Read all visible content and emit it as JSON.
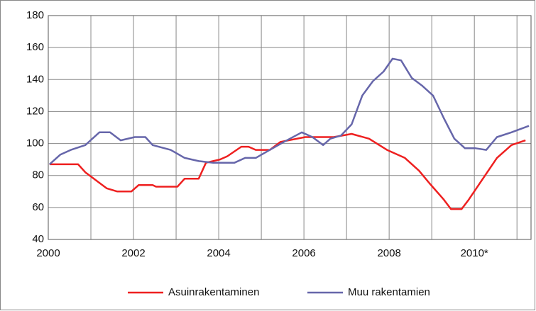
{
  "chart_data": {
    "type": "line",
    "xlim": [
      2000,
      2011.33
    ],
    "xticks": [
      2000,
      {
        "value": 2001,
        "label": null
      },
      2002,
      {
        "value": 2003,
        "label": null
      },
      2004,
      {
        "value": 2005,
        "label": null
      },
      2006,
      {
        "value": 2007,
        "label": null
      },
      2008,
      {
        "value": 2009,
        "label": null
      },
      {
        "value": 2010,
        "label": "2010*"
      },
      {
        "value": 2011,
        "label": null
      }
    ],
    "ylim": [
      40,
      180
    ],
    "yticks": [
      40,
      60,
      80,
      100,
      120,
      140,
      160,
      180
    ],
    "grid": true,
    "legend": "bottom",
    "series": [
      {
        "name": "Asuinrakentaminen",
        "color": "#ee2020",
        "x": [
          2000.03,
          2000.7,
          2000.87,
          2001.37,
          2001.62,
          2001.95,
          2002.12,
          2002.45,
          2002.53,
          2003.03,
          2003.2,
          2003.53,
          2003.7,
          2004.03,
          2004.2,
          2004.53,
          2004.7,
          2004.87,
          2005.2,
          2005.45,
          2006.03,
          2006.7,
          2007.12,
          2007.53,
          2007.95,
          2008.37,
          2008.7,
          2008.95,
          2009.28,
          2009.45,
          2009.7,
          2009.87,
          2010.2,
          2010.53,
          2010.87,
          2011.2
        ],
        "values": [
          87,
          87,
          82,
          72,
          70,
          70,
          74,
          74,
          73,
          73,
          78,
          78,
          88,
          90,
          92,
          98,
          98,
          96,
          96,
          101,
          104,
          104,
          106,
          103,
          96,
          91,
          83,
          75,
          65,
          59,
          59,
          65,
          78,
          91,
          99,
          102
        ]
      },
      {
        "name": "Muu rakentamien",
        "color": "#6666aa",
        "x": [
          2000.03,
          2000.28,
          2000.53,
          2000.87,
          2001.2,
          2001.45,
          2001.7,
          2002.03,
          2002.28,
          2002.45,
          2002.87,
          2003.2,
          2003.53,
          2003.87,
          2004.2,
          2004.37,
          2004.62,
          2004.87,
          2005.2,
          2005.53,
          2005.95,
          2006.2,
          2006.45,
          2006.62,
          2006.87,
          2007.12,
          2007.37,
          2007.62,
          2007.87,
          2008.08,
          2008.28,
          2008.53,
          2008.78,
          2009.03,
          2009.28,
          2009.53,
          2009.78,
          2010.03,
          2010.28,
          2010.53,
          2010.87,
          2011.28
        ],
        "values": [
          87,
          93,
          96,
          99,
          107,
          107,
          102,
          104,
          104,
          99,
          96,
          91,
          89,
          88,
          88,
          88,
          91,
          91,
          96,
          101,
          107,
          104,
          99,
          103,
          105,
          112,
          130,
          139,
          145,
          153,
          152,
          141,
          136,
          130,
          116,
          103,
          97,
          97,
          96,
          104,
          107,
          111
        ]
      }
    ]
  }
}
